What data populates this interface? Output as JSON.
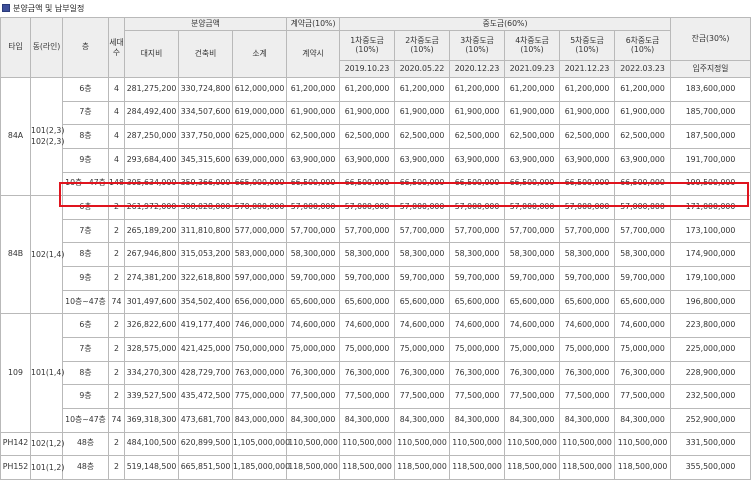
{
  "section": {
    "title": "분양금액 및 납부일정"
  },
  "header": {
    "type": "타입",
    "dong_line": "동(라인)",
    "floor": "층",
    "units": "세대수",
    "price": "분양금액",
    "price_land": "대지비",
    "price_building": "건축비",
    "price_total": "소계",
    "deposit": "계약금(10%)",
    "deposit_when": "계약시",
    "middle": "중도금(60%)",
    "middle_items": [
      {
        "name": "1차중도금",
        "pct": "(10%)",
        "date": "2019.10.23"
      },
      {
        "name": "2차중도금",
        "pct": "(10%)",
        "date": "2020.05.22"
      },
      {
        "name": "3차중도금",
        "pct": "(10%)",
        "date": "2020.12.23"
      },
      {
        "name": "4차중도금",
        "pct": "(10%)",
        "date": "2021.09.23"
      },
      {
        "name": "5차중도금",
        "pct": "(10%)",
        "date": "2021.12.23"
      },
      {
        "name": "6차중도금",
        "pct": "(10%)",
        "date": "2022.03.23"
      }
    ],
    "balance": "잔금(30%)",
    "balance_when": "입주지정일"
  },
  "groups": [
    {
      "type": "84A",
      "dong": "101(2,3) 102(2,3)",
      "rows": [
        {
          "floor": "6층",
          "units": "4",
          "land": "281,275,200",
          "building": "330,724,800",
          "total": "612,000,000",
          "deposit": "61,200,000",
          "middle": [
            "61,200,000",
            "61,200,000",
            "61,200,000",
            "61,200,000",
            "61,200,000",
            "61,200,000"
          ],
          "balance": "183,600,000"
        },
        {
          "floor": "7층",
          "units": "4",
          "land": "284,492,400",
          "building": "334,507,600",
          "total": "619,000,000",
          "deposit": "61,900,000",
          "middle": [
            "61,900,000",
            "61,900,000",
            "61,900,000",
            "61,900,000",
            "61,900,000",
            "61,900,000"
          ],
          "balance": "185,700,000"
        },
        {
          "floor": "8층",
          "units": "4",
          "land": "287,250,000",
          "building": "337,750,000",
          "total": "625,000,000",
          "deposit": "62,500,000",
          "middle": [
            "62,500,000",
            "62,500,000",
            "62,500,000",
            "62,500,000",
            "62,500,000",
            "62,500,000"
          ],
          "balance": "187,500,000"
        },
        {
          "floor": "9층",
          "units": "4",
          "land": "293,684,400",
          "building": "345,315,600",
          "total": "639,000,000",
          "deposit": "63,900,000",
          "middle": [
            "63,900,000",
            "63,900,000",
            "63,900,000",
            "63,900,000",
            "63,900,000",
            "63,900,000"
          ],
          "balance": "191,700,000"
        },
        {
          "floor": "10층~47층",
          "units": "148",
          "land": "305,634,000",
          "building": "359,366,000",
          "total": "665,000,000",
          "deposit": "66,500,000",
          "middle": [
            "66,500,000",
            "66,500,000",
            "66,500,000",
            "66,500,000",
            "66,500,000",
            "66,500,000"
          ],
          "balance": "199,500,000"
        }
      ]
    },
    {
      "type": "84B",
      "dong": "102(1,4)",
      "rows": [
        {
          "floor": "6층",
          "units": "2",
          "land": "261,972,000",
          "building": "308,028,000",
          "total": "570,000,000",
          "deposit": "57,000,000",
          "middle": [
            "57,000,000",
            "57,000,000",
            "57,000,000",
            "57,000,000",
            "57,000,000",
            "57,000,000"
          ],
          "balance": "171,000,000"
        },
        {
          "floor": "7층",
          "units": "2",
          "land": "265,189,200",
          "building": "311,810,800",
          "total": "577,000,000",
          "deposit": "57,700,000",
          "middle": [
            "57,700,000",
            "57,700,000",
            "57,700,000",
            "57,700,000",
            "57,700,000",
            "57,700,000"
          ],
          "balance": "173,100,000"
        },
        {
          "floor": "8층",
          "units": "2",
          "land": "267,946,800",
          "building": "315,053,200",
          "total": "583,000,000",
          "deposit": "58,300,000",
          "middle": [
            "58,300,000",
            "58,300,000",
            "58,300,000",
            "58,300,000",
            "58,300,000",
            "58,300,000"
          ],
          "balance": "174,900,000"
        },
        {
          "floor": "9층",
          "units": "2",
          "land": "274,381,200",
          "building": "322,618,800",
          "total": "597,000,000",
          "deposit": "59,700,000",
          "middle": [
            "59,700,000",
            "59,700,000",
            "59,700,000",
            "59,700,000",
            "59,700,000",
            "59,700,000"
          ],
          "balance": "179,100,000"
        },
        {
          "floor": "10층~47층",
          "units": "74",
          "land": "301,497,600",
          "building": "354,502,400",
          "total": "656,000,000",
          "deposit": "65,600,000",
          "middle": [
            "65,600,000",
            "65,600,000",
            "65,600,000",
            "65,600,000",
            "65,600,000",
            "65,600,000"
          ],
          "balance": "196,800,000"
        }
      ]
    },
    {
      "type": "109",
      "dong": "101(1,4)",
      "rows": [
        {
          "floor": "6층",
          "units": "2",
          "land": "326,822,600",
          "building": "419,177,400",
          "total": "746,000,000",
          "deposit": "74,600,000",
          "middle": [
            "74,600,000",
            "74,600,000",
            "74,600,000",
            "74,600,000",
            "74,600,000",
            "74,600,000"
          ],
          "balance": "223,800,000"
        },
        {
          "floor": "7층",
          "units": "2",
          "land": "328,575,000",
          "building": "421,425,000",
          "total": "750,000,000",
          "deposit": "75,000,000",
          "middle": [
            "75,000,000",
            "75,000,000",
            "75,000,000",
            "75,000,000",
            "75,000,000",
            "75,000,000"
          ],
          "balance": "225,000,000"
        },
        {
          "floor": "8층",
          "units": "2",
          "land": "334,270,300",
          "building": "428,729,700",
          "total": "763,000,000",
          "deposit": "76,300,000",
          "middle": [
            "76,300,000",
            "76,300,000",
            "76,300,000",
            "76,300,000",
            "76,300,000",
            "76,300,000"
          ],
          "balance": "228,900,000"
        },
        {
          "floor": "9층",
          "units": "2",
          "land": "339,527,500",
          "building": "435,472,500",
          "total": "775,000,000",
          "deposit": "77,500,000",
          "middle": [
            "77,500,000",
            "77,500,000",
            "77,500,000",
            "77,500,000",
            "77,500,000",
            "77,500,000"
          ],
          "balance": "232,500,000"
        },
        {
          "floor": "10층~47층",
          "units": "74",
          "land": "369,318,300",
          "building": "473,681,700",
          "total": "843,000,000",
          "deposit": "84,300,000",
          "middle": [
            "84,300,000",
            "84,300,000",
            "84,300,000",
            "84,300,000",
            "84,300,000",
            "84,300,000"
          ],
          "balance": "252,900,000"
        }
      ]
    },
    {
      "type": "PH142",
      "dong": "102(1,2)",
      "rows": [
        {
          "floor": "48층",
          "units": "2",
          "land": "484,100,500",
          "building": "620,899,500",
          "total": "1,105,000,000",
          "deposit": "110,500,000",
          "middle": [
            "110,500,000",
            "110,500,000",
            "110,500,000",
            "110,500,000",
            "110,500,000",
            "110,500,000"
          ],
          "balance": "331,500,000"
        }
      ]
    },
    {
      "type": "PH152",
      "dong": "101(1,2)",
      "rows": [
        {
          "floor": "48층",
          "units": "2",
          "land": "519,148,500",
          "building": "665,851,500",
          "total": "1,185,000,000",
          "deposit": "118,500,000",
          "middle": [
            "118,500,000",
            "118,500,000",
            "118,500,000",
            "118,500,000",
            "118,500,000",
            "118,500,000"
          ],
          "balance": "355,500,000"
        }
      ]
    }
  ]
}
